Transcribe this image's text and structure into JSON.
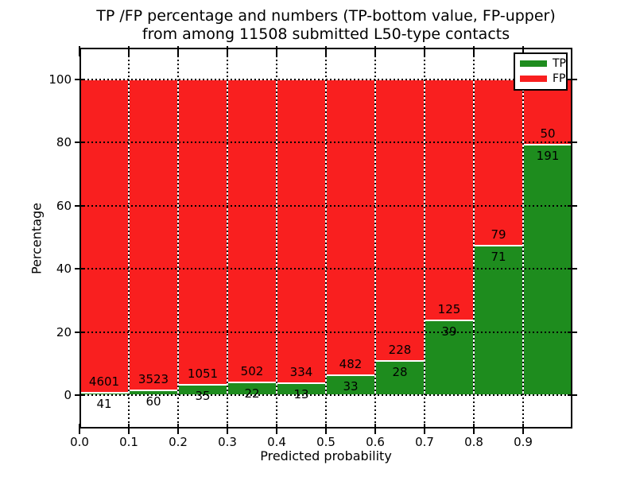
{
  "chart_data": {
    "type": "bar",
    "stacked": true,
    "orientation": "vertical",
    "title_lines": [
      "TP /FP percentage and numbers (TP-bottom value, FP-upper)",
      "from among 11508 submitted L50-type contacts"
    ],
    "xlabel": "Predicted probability",
    "ylabel": "Percentage",
    "total_submitted": 11508,
    "bin_edges": [
      0.0,
      0.1,
      0.2,
      0.3,
      0.4,
      0.5,
      0.6,
      0.7,
      0.8,
      0.9,
      1.0
    ],
    "series": [
      {
        "name": "TP",
        "color": "#1e8c1e",
        "counts": [
          41,
          60,
          35,
          22,
          13,
          33,
          28,
          39,
          71,
          191
        ]
      },
      {
        "name": "FP",
        "color": "#f91f1f",
        "counts": [
          4601,
          3523,
          1051,
          502,
          334,
          482,
          228,
          125,
          79,
          50
        ]
      }
    ],
    "tp_percent": [
      0.88,
      1.67,
      3.22,
      4.2,
      3.75,
      6.41,
      10.94,
      23.78,
      47.33,
      79.25
    ],
    "bars_normalized_to": 100,
    "x_tick_values": [
      0.0,
      0.1,
      0.2,
      0.3,
      0.4,
      0.5,
      0.6,
      0.7,
      0.8,
      0.9
    ],
    "x_tick_labels": [
      "0.0",
      "0.1",
      "0.2",
      "0.3",
      "0.4",
      "0.5",
      "0.6",
      "0.7",
      "0.8",
      "0.9"
    ],
    "y_tick_values": [
      0,
      20,
      40,
      60,
      80,
      100
    ],
    "y_tick_labels": [
      "0",
      "20",
      "40",
      "60",
      "80",
      "100"
    ],
    "xlim": [
      0.0,
      1.0
    ],
    "ylim": [
      -10.5,
      110
    ],
    "grid": {
      "on": true,
      "style": "dotted",
      "color": "#000000"
    },
    "legend": {
      "position": "upper right",
      "entries": [
        "TP",
        "FP"
      ]
    },
    "colors": {
      "background": "#ffffff",
      "axes": "#000000",
      "bar_edge": "#ffffff"
    }
  }
}
